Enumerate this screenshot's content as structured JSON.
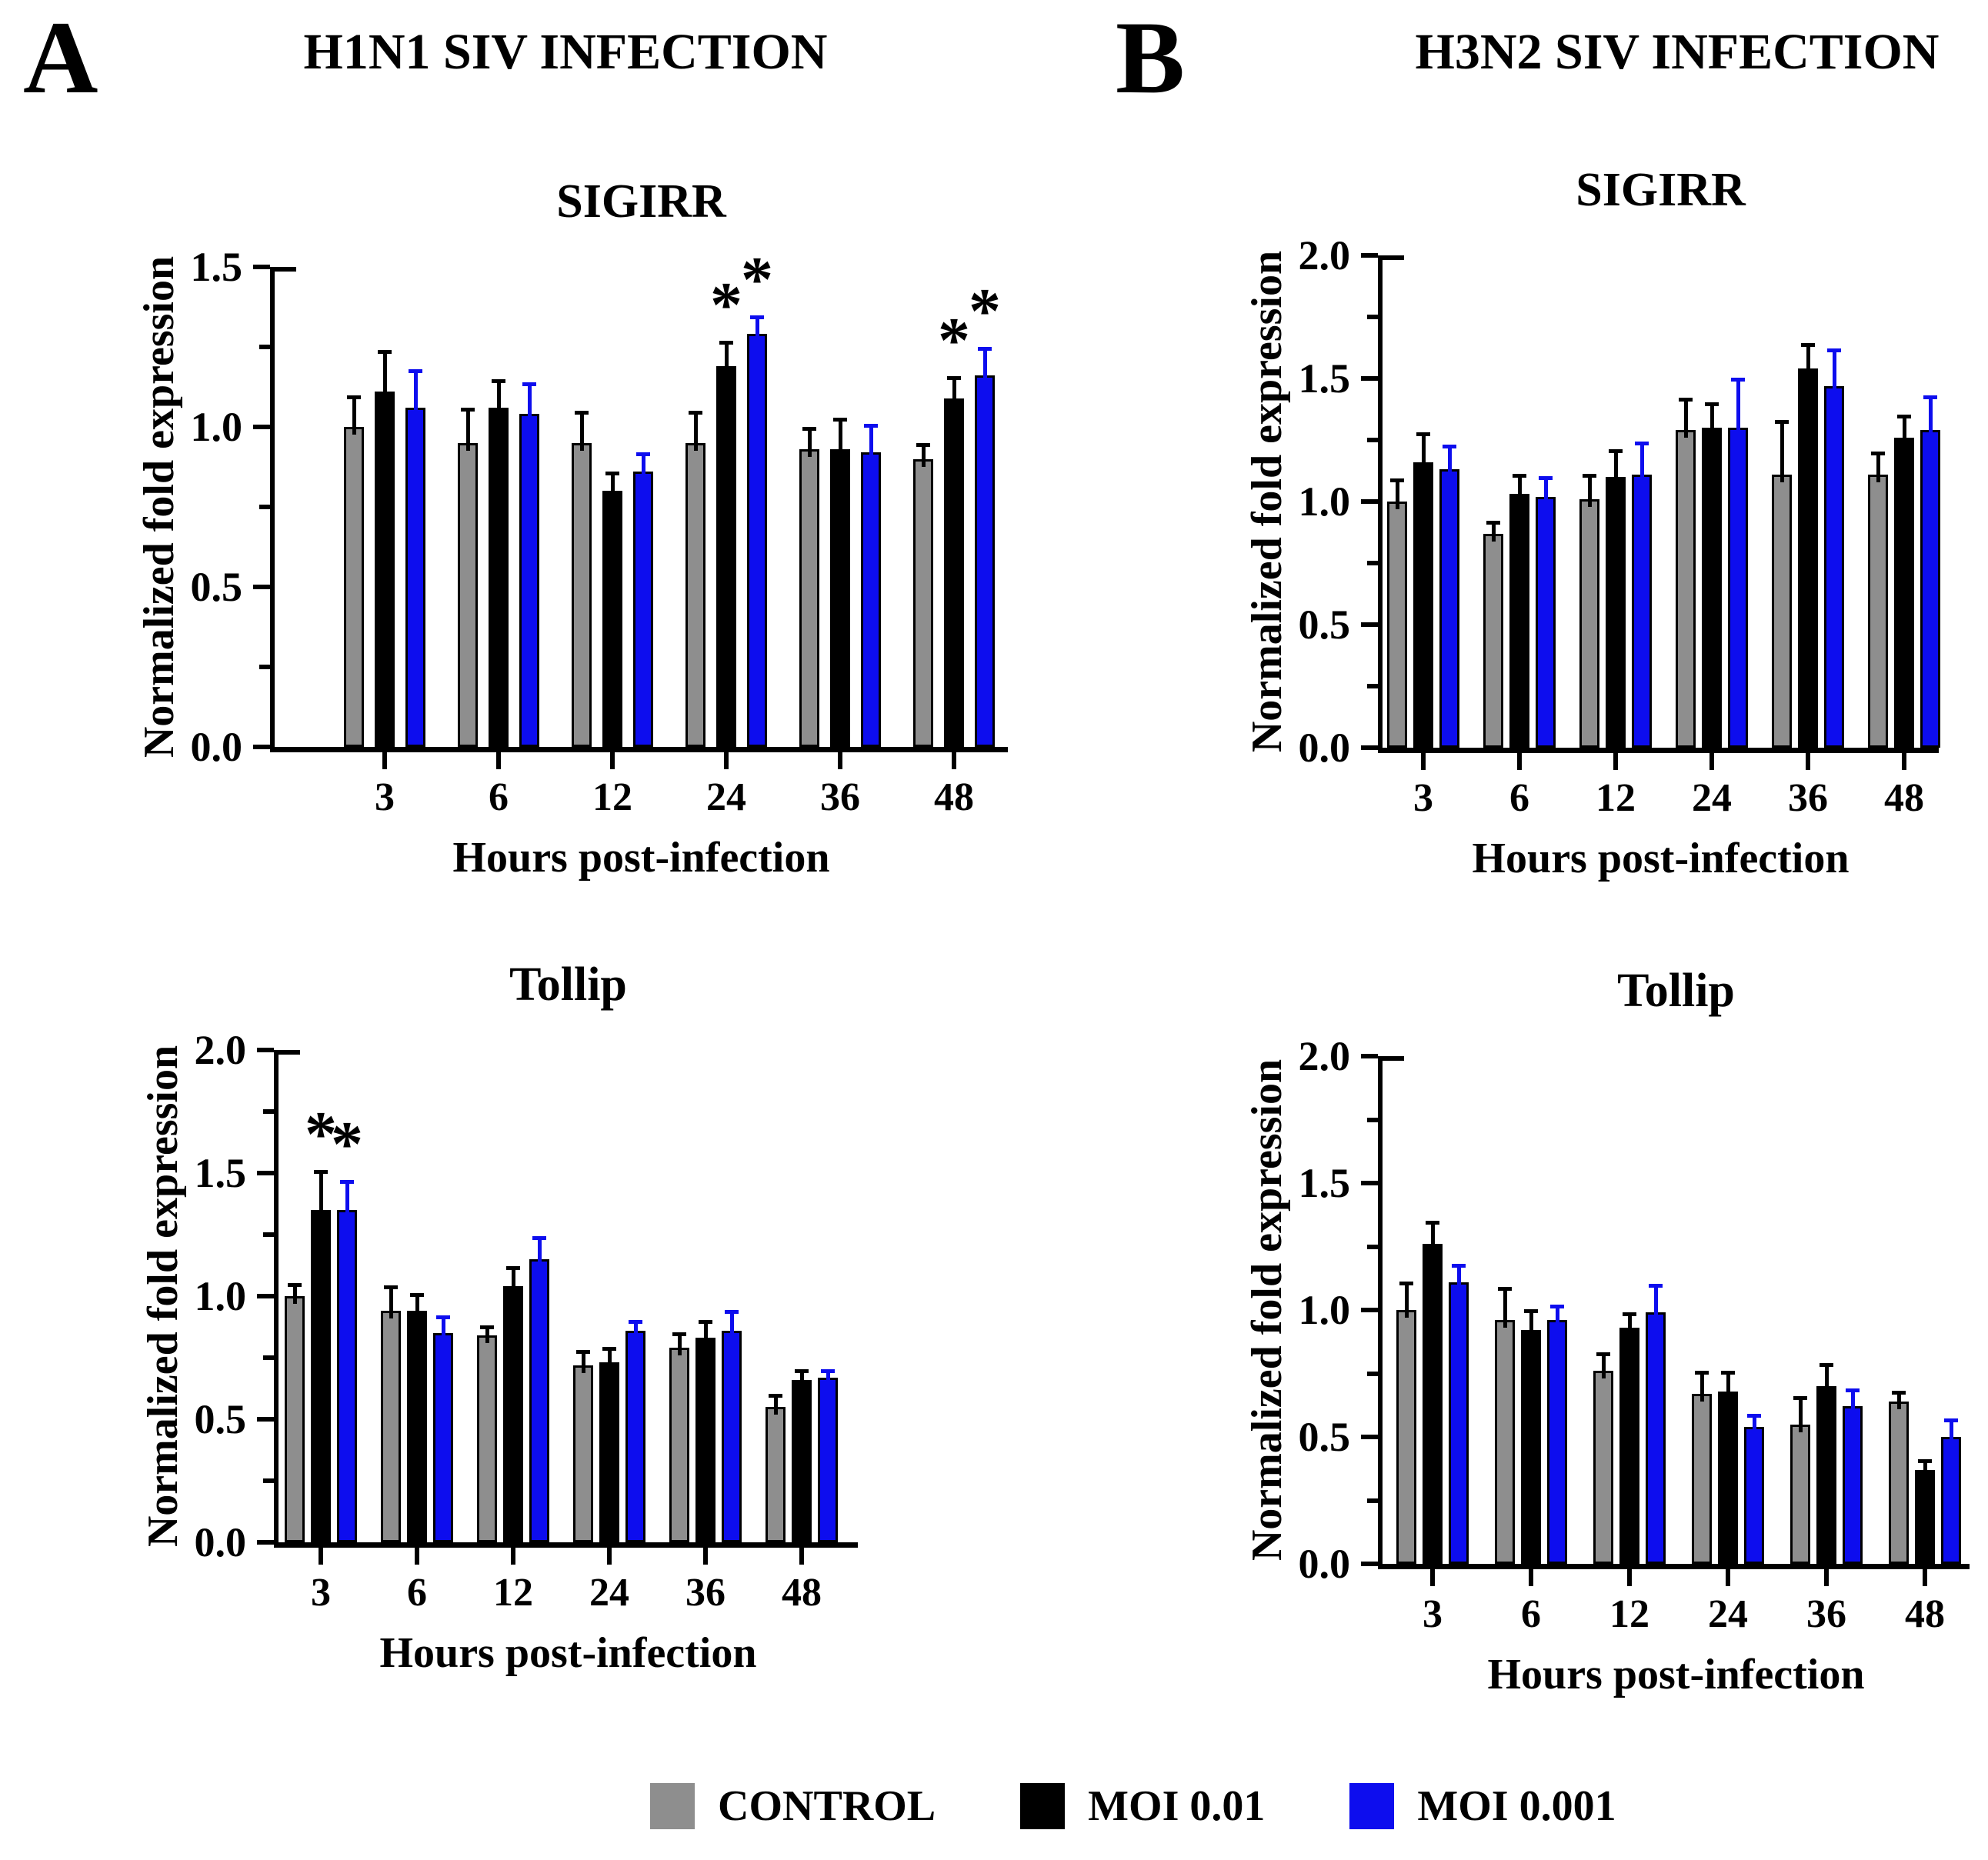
{
  "figure": {
    "panels": [
      {
        "letter": "A",
        "title": "H1N1 SIV INFECTION"
      },
      {
        "letter": "B",
        "title": "H3N2 SIV INFECTION"
      }
    ],
    "legend": [
      {
        "label": "CONTROL",
        "color": "#8E8E8E"
      },
      {
        "label": "MOI 0.01",
        "color": "#000000"
      },
      {
        "label": "MOI 0.001",
        "color": "#0D0DEE"
      }
    ]
  },
  "chart_data": [
    {
      "id": "a-sigirr",
      "panel": "A",
      "type": "bar",
      "title": "SIGIRR",
      "xlabel": "Hours post-infection",
      "ylabel": "Normalized fold expression",
      "categories": [
        "3",
        "6",
        "12",
        "24",
        "36",
        "48"
      ],
      "ylim": [
        0,
        1.5
      ],
      "yticks": [
        0.0,
        0.5,
        1.0,
        1.5
      ],
      "minor_tick_step": 0.25,
      "grid": false,
      "series": [
        {
          "name": "CONTROL",
          "color": "#8E8E8E",
          "error_color": "#000000",
          "values": [
            1.0,
            0.95,
            0.95,
            0.95,
            0.93,
            0.9
          ],
          "errors": [
            0.09,
            0.1,
            0.09,
            0.09,
            0.06,
            0.04
          ]
        },
        {
          "name": "MOI 0.01",
          "color": "#000000",
          "error_color": "#000000",
          "values": [
            1.11,
            1.06,
            0.8,
            1.19,
            0.93,
            1.09
          ],
          "errors": [
            0.12,
            0.08,
            0.05,
            0.07,
            0.09,
            0.06
          ]
        },
        {
          "name": "MOI 0.001",
          "color": "#0D0DEE",
          "error_color": "#0D0DEE",
          "values": [
            1.06,
            1.04,
            0.86,
            1.29,
            0.92,
            1.16
          ],
          "errors": [
            0.11,
            0.09,
            0.05,
            0.05,
            0.08,
            0.08
          ]
        }
      ],
      "significance": [
        {
          "category_index": 3,
          "series_index": 1,
          "symbol": "*"
        },
        {
          "category_index": 3,
          "series_index": 2,
          "symbol": "*"
        },
        {
          "category_index": 5,
          "series_index": 1,
          "symbol": "*"
        },
        {
          "category_index": 5,
          "series_index": 2,
          "symbol": "*"
        }
      ]
    },
    {
      "id": "a-tollip",
      "panel": "A",
      "type": "bar",
      "title": "Tollip",
      "xlabel": "Hours post-infection",
      "ylabel": "Normalized fold expression",
      "categories": [
        "3",
        "6",
        "12",
        "24",
        "36",
        "48"
      ],
      "ylim": [
        0,
        2.0
      ],
      "yticks": [
        0.0,
        0.5,
        1.0,
        1.5,
        2.0
      ],
      "minor_tick_step": 0.25,
      "grid": false,
      "series": [
        {
          "name": "CONTROL",
          "color": "#8E8E8E",
          "error_color": "#000000",
          "values": [
            1.0,
            0.94,
            0.84,
            0.72,
            0.79,
            0.55
          ],
          "errors": [
            0.04,
            0.09,
            0.03,
            0.05,
            0.05,
            0.04
          ]
        },
        {
          "name": "MOI 0.01",
          "color": "#000000",
          "error_color": "#000000",
          "values": [
            1.35,
            0.94,
            1.04,
            0.73,
            0.83,
            0.66
          ],
          "errors": [
            0.15,
            0.06,
            0.07,
            0.05,
            0.06,
            0.03
          ]
        },
        {
          "name": "MOI 0.001",
          "color": "#0D0DEE",
          "error_color": "#0D0DEE",
          "values": [
            1.35,
            0.85,
            1.15,
            0.86,
            0.86,
            0.67
          ],
          "errors": [
            0.11,
            0.06,
            0.08,
            0.03,
            0.07,
            0.02
          ]
        }
      ],
      "significance": [
        {
          "category_index": 0,
          "series_index": 1,
          "symbol": "*"
        },
        {
          "category_index": 0,
          "series_index": 2,
          "symbol": "*"
        }
      ]
    },
    {
      "id": "b-sigirr",
      "panel": "B",
      "type": "bar",
      "title": "SIGIRR",
      "xlabel": "Hours post-infection",
      "ylabel": "Normalized fold expression",
      "categories": [
        "3",
        "6",
        "12",
        "24",
        "36",
        "48"
      ],
      "ylim": [
        0,
        2.0
      ],
      "yticks": [
        0.0,
        0.5,
        1.0,
        1.5,
        2.0
      ],
      "minor_tick_step": 0.25,
      "grid": false,
      "series": [
        {
          "name": "CONTROL",
          "color": "#8E8E8E",
          "error_color": "#000000",
          "values": [
            1.0,
            0.87,
            1.01,
            1.29,
            1.11,
            1.11
          ],
          "errors": [
            0.08,
            0.04,
            0.09,
            0.12,
            0.21,
            0.08
          ]
        },
        {
          "name": "MOI 0.01",
          "color": "#000000",
          "error_color": "#000000",
          "values": [
            1.16,
            1.03,
            1.1,
            1.3,
            1.54,
            1.26
          ],
          "errors": [
            0.11,
            0.07,
            0.1,
            0.09,
            0.09,
            0.08
          ]
        },
        {
          "name": "MOI 0.001",
          "color": "#0D0DEE",
          "error_color": "#0D0DEE",
          "values": [
            1.13,
            1.02,
            1.11,
            1.3,
            1.47,
            1.29
          ],
          "errors": [
            0.09,
            0.07,
            0.12,
            0.19,
            0.14,
            0.13
          ]
        }
      ],
      "significance": []
    },
    {
      "id": "b-tollip",
      "panel": "B",
      "type": "bar",
      "title": "Tollip",
      "xlabel": "Hours post-infection",
      "ylabel": "Normalized fold expression",
      "categories": [
        "3",
        "6",
        "12",
        "24",
        "36",
        "48"
      ],
      "ylim": [
        0,
        2.0
      ],
      "yticks": [
        0.0,
        0.5,
        1.0,
        1.5,
        2.0
      ],
      "minor_tick_step": 0.25,
      "grid": false,
      "series": [
        {
          "name": "CONTROL",
          "color": "#8E8E8E",
          "error_color": "#000000",
          "values": [
            1.0,
            0.96,
            0.76,
            0.67,
            0.55,
            0.64
          ],
          "errors": [
            0.1,
            0.12,
            0.06,
            0.08,
            0.1,
            0.03
          ]
        },
        {
          "name": "MOI 0.01",
          "color": "#000000",
          "error_color": "#000000",
          "values": [
            1.26,
            0.92,
            0.93,
            0.68,
            0.7,
            0.37
          ],
          "errors": [
            0.08,
            0.07,
            0.05,
            0.07,
            0.08,
            0.03
          ]
        },
        {
          "name": "MOI 0.001",
          "color": "#0D0DEE",
          "error_color": "#0D0DEE",
          "values": [
            1.11,
            0.96,
            0.99,
            0.54,
            0.62,
            0.5
          ],
          "errors": [
            0.06,
            0.05,
            0.1,
            0.04,
            0.06,
            0.06
          ]
        }
      ],
      "significance": []
    }
  ]
}
